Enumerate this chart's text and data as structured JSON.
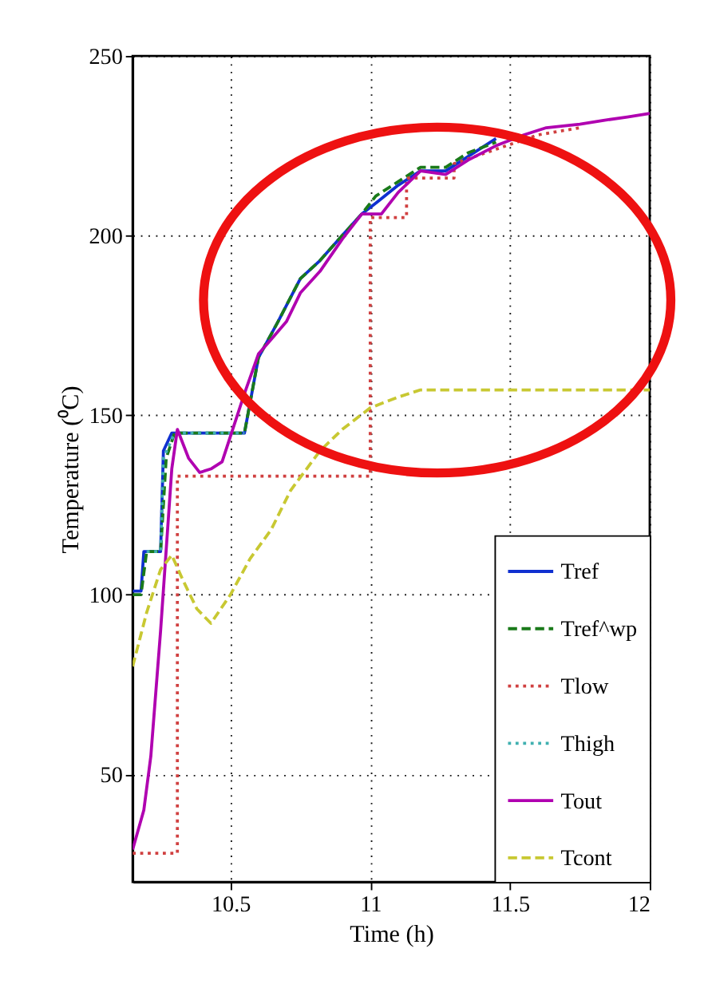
{
  "chart_data": {
    "type": "line",
    "xlabel": "Time (h)",
    "ylabel": "Temperature (⁰C)",
    "xlim": [
      10.15,
      12
    ],
    "xticks": [
      10.5,
      {
        "value": 11,
        "label": "11"
      },
      11.5,
      {
        "value": 12,
        "label": "12"
      }
    ],
    "ylim": [
      20,
      250
    ],
    "yticks": [
      50,
      100,
      150,
      200,
      250
    ],
    "grid": true,
    "legend": "bottom right",
    "marker": "none",
    "series": [
      {
        "name": "Tref",
        "color": "#1030d0",
        "line_style": "solid",
        "x": [
          10.15,
          10.18,
          10.19,
          10.25,
          10.26,
          10.29,
          10.55,
          10.6,
          10.67,
          10.75,
          10.82,
          10.9,
          10.97,
          11.02,
          11.1,
          11.18,
          11.27,
          11.35,
          11.45
        ],
        "values": [
          101,
          101,
          112,
          112,
          140,
          145,
          145,
          166,
          176,
          188,
          193,
          200,
          206,
          209,
          214,
          218,
          218,
          222,
          227
        ]
      },
      {
        "name": "Tref^wp",
        "color": "#1a7a1a",
        "line_style": "dashed",
        "x": [
          10.15,
          10.18,
          10.2,
          10.25,
          10.27,
          10.3,
          10.55,
          10.6,
          10.67,
          10.75,
          10.82,
          10.9,
          10.97,
          11.02,
          11.1,
          11.18,
          11.27,
          11.35,
          11.45
        ],
        "values": [
          100,
          100,
          112,
          112,
          138,
          145,
          145,
          166,
          176,
          188,
          193,
          200,
          206,
          211,
          215,
          219,
          219,
          223,
          226
        ]
      },
      {
        "name": "Tlow",
        "color": "#d04040",
        "line_style": "dotted",
        "x": [
          10.15,
          10.31,
          10.31,
          11.0,
          11.0,
          11.13,
          11.13,
          11.3,
          11.3,
          11.45,
          11.6,
          11.75
        ],
        "values": [
          28,
          28,
          133,
          133,
          205,
          205,
          216,
          216,
          220,
          224,
          228,
          230
        ]
      },
      {
        "name": "Thigh",
        "color": "#40b0b0",
        "line_style": "dotted",
        "x": [
          10.2,
          10.25,
          10.26,
          10.3,
          10.55
        ],
        "values": [
          112,
          112,
          138,
          145,
          145
        ]
      },
      {
        "name": "Tout",
        "color": "#b000b0",
        "line_style": "solid",
        "x": [
          10.15,
          10.19,
          10.215,
          10.25,
          10.29,
          10.31,
          10.35,
          10.39,
          10.43,
          10.47,
          10.55,
          10.6,
          10.645,
          10.7,
          10.75,
          10.82,
          10.9,
          10.97,
          11.0,
          11.04,
          11.1,
          11.18,
          11.27,
          11.35,
          11.45,
          11.55,
          11.63,
          11.75,
          11.83,
          11.92,
          12.0
        ],
        "values": [
          29,
          40,
          55,
          90,
          135,
          146,
          138,
          134,
          135,
          137,
          156,
          167,
          171,
          176,
          184,
          190,
          199,
          206,
          206,
          206,
          212,
          218,
          217,
          221,
          225,
          228,
          230,
          231,
          232,
          233,
          234
        ]
      },
      {
        "name": "Tcont",
        "color": "#c8c832",
        "line_style": "dashed",
        "x": [
          10.15,
          10.2,
          10.25,
          10.29,
          10.33,
          10.38,
          10.43,
          10.5,
          10.57,
          10.645,
          10.715,
          10.82,
          10.9,
          11.0,
          11.1,
          11.18,
          11.3,
          11.5,
          11.75,
          12.0
        ],
        "values": [
          80,
          95,
          107,
          111,
          104,
          96,
          92,
          100,
          110,
          118,
          129,
          140,
          146,
          152,
          155,
          157,
          157,
          157,
          157,
          157
        ]
      }
    ]
  }
}
